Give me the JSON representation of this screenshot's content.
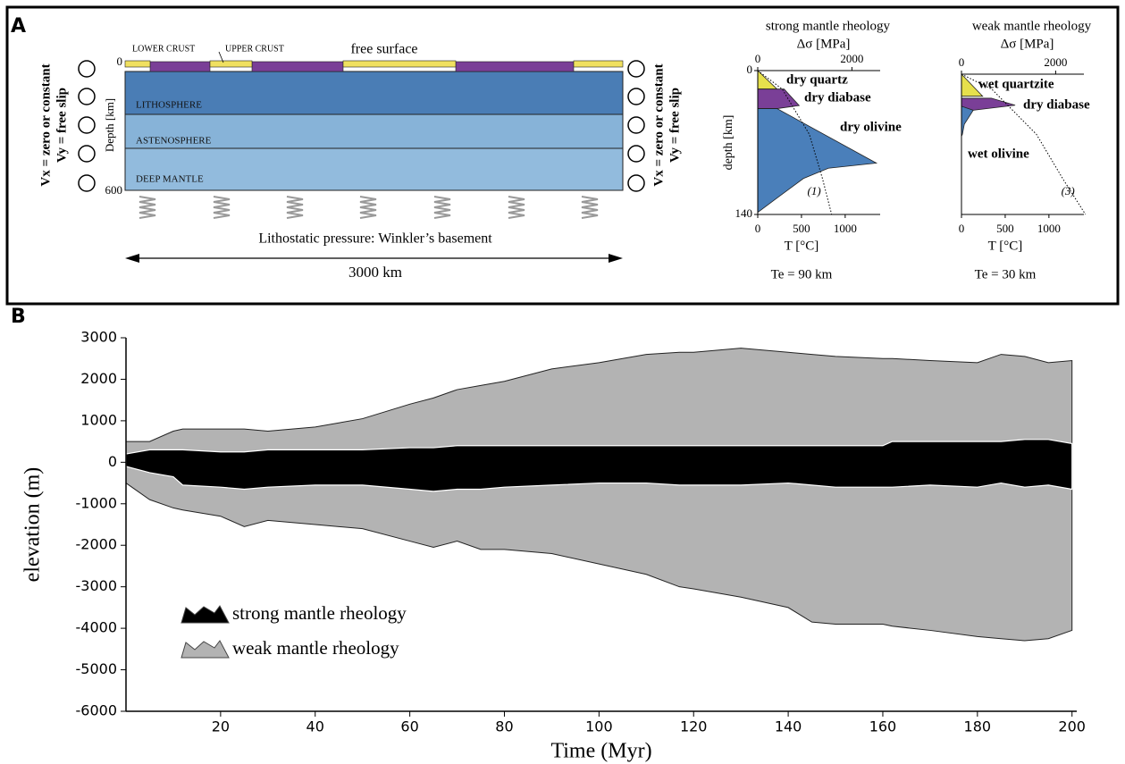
{
  "panel_a": {
    "label": "A",
    "free_surface": "free surface",
    "lower_crust": "LOWER CRUST",
    "upper_crust": "UPPER CRUST",
    "layers": [
      "LITHOSPHERE",
      "ASTENOSPHERE",
      "DEEP MANTLE"
    ],
    "depth_label": "Depth [km]",
    "depth_top": "0",
    "depth_bottom": "600",
    "left_bc": [
      "Vx = zero or constant",
      "Vy = free slip"
    ],
    "right_bc": [
      "Vx = zero or constant",
      "Vy = free slip"
    ],
    "basement": "Lithostatic pressure: Winkler’s basement",
    "width": "3000 km"
  },
  "panel_b": {
    "label": "B"
  },
  "chart_data": [
    {
      "type": "envelope",
      "title": "strong mantle rheology",
      "x2label": "Δσ [MPa]",
      "x2lim": [
        0,
        2600
      ],
      "x2ticks": [
        0,
        2000
      ],
      "ylabel": "depth [km]",
      "ylim": [
        0,
        140
      ],
      "yticks": [
        0,
        140
      ],
      "yreversed": true,
      "xlabel": "T [°C]",
      "xlim": [
        0,
        1400
      ],
      "xticks": [
        0,
        500,
        1000
      ],
      "annotation": "Te = 90 km",
      "series": [
        {
          "name": "dry quartz",
          "color": "#e6e04c",
          "axis": "x2",
          "x": [
            0,
            410,
            0
          ],
          "y": [
            0,
            18,
            18
          ]
        },
        {
          "name": "dry diabase",
          "color": "#7a3f97",
          "axis": "x2",
          "x": [
            0,
            560,
            880,
            410,
            0
          ],
          "y": [
            18,
            18,
            34,
            37,
            37
          ]
        },
        {
          "name": "dry olivine",
          "color": "#4a7fba",
          "axis": "x2",
          "x": [
            0,
            410,
            2520,
            1500,
            970,
            410,
            0
          ],
          "y": [
            37,
            37,
            90,
            95,
            105,
            124,
            138
          ]
        }
      ],
      "geotherm": {
        "name": "(1)",
        "x": [
          0,
          280,
          590,
          740,
          845
        ],
        "y": [
          0,
          18,
          62,
          105,
          140
        ]
      }
    },
    {
      "type": "envelope",
      "title": "weak mantle rheology",
      "x2label": "Δσ [MPa]",
      "x2lim": [
        0,
        2600
      ],
      "x2ticks": [
        0,
        2000
      ],
      "ylim": [
        0,
        140
      ],
      "yreversed": true,
      "xlabel": "T [°C]",
      "xlim": [
        0,
        1400
      ],
      "xticks": [
        0,
        500,
        1000
      ],
      "annotation": "Te = 30 km",
      "series": [
        {
          "name": "wet quartzite",
          "color": "#e6e04c",
          "axis": "x2",
          "x": [
            0,
            450,
            0
          ],
          "y": [
            0,
            22,
            22
          ]
        },
        {
          "name": "dry diabase",
          "color": "#7a3f97",
          "axis": "x2",
          "x": [
            0,
            635,
            1140,
            250,
            0
          ],
          "y": [
            24,
            24,
            31,
            36,
            36
          ]
        },
        {
          "name": "wet olivine",
          "color": "#4a7fba",
          "axis": "x2",
          "x": [
            0,
            250,
            60,
            20,
            0
          ],
          "y": [
            32,
            36,
            50,
            60,
            62
          ]
        }
      ],
      "geotherm": {
        "name": "(3)",
        "x": [
          0,
          347,
          857,
          1163,
          1418
        ],
        "y": [
          0,
          15,
          60,
          105,
          140
        ]
      }
    },
    {
      "type": "range-area",
      "xlabel": "Time (Myr)",
      "ylabel": "elevation (m)",
      "xlim": [
        0,
        201
      ],
      "xticks": [
        20,
        40,
        60,
        80,
        100,
        120,
        140,
        160,
        180,
        200
      ],
      "ylim": [
        -6000,
        3000
      ],
      "yticks": [
        -6000,
        -5000,
        -4000,
        -3000,
        -2000,
        -1000,
        0,
        1000,
        2000,
        3000
      ],
      "x": [
        0,
        5,
        10,
        12,
        20,
        25,
        30,
        40,
        50,
        60,
        65,
        70,
        75,
        80,
        90,
        100,
        110,
        117,
        120,
        130,
        140,
        145,
        150,
        160,
        162,
        170,
        180,
        185,
        190,
        195,
        200
      ],
      "series": [
        {
          "name": "weak mantle rheology",
          "color": "#b3b3b3",
          "upper": [
            500,
            500,
            750,
            800,
            800,
            800,
            750,
            850,
            1050,
            1400,
            1550,
            1750,
            1850,
            1950,
            2250,
            2400,
            2600,
            2650,
            2650,
            2750,
            2650,
            2600,
            2550,
            2500,
            2500,
            2450,
            2400,
            2600,
            2550,
            2400,
            2450
          ],
          "lower": [
            -500,
            -900,
            -1100,
            -1150,
            -1300,
            -1550,
            -1400,
            -1500,
            -1600,
            -1900,
            -2050,
            -1900,
            -2100,
            -2100,
            -2200,
            -2450,
            -2700,
            -3000,
            -3050,
            -3250,
            -3500,
            -3850,
            -3900,
            -3900,
            -3950,
            -4050,
            -4200,
            -4250,
            -4300,
            -4250,
            -4050
          ]
        },
        {
          "name": "strong mantle rheology",
          "color": "#000000",
          "upper": [
            200,
            300,
            300,
            300,
            250,
            250,
            300,
            300,
            300,
            350,
            350,
            400,
            400,
            400,
            400,
            400,
            400,
            400,
            400,
            400,
            400,
            400,
            400,
            400,
            500,
            500,
            500,
            500,
            550,
            550,
            450
          ],
          "lower": [
            -100,
            -250,
            -350,
            -550,
            -600,
            -650,
            -600,
            -550,
            -550,
            -650,
            -700,
            -650,
            -650,
            -600,
            -550,
            -500,
            -500,
            -550,
            -550,
            -550,
            -500,
            -550,
            -600,
            -600,
            -600,
            -550,
            -600,
            -500,
            -600,
            -550,
            -650
          ]
        }
      ]
    }
  ]
}
